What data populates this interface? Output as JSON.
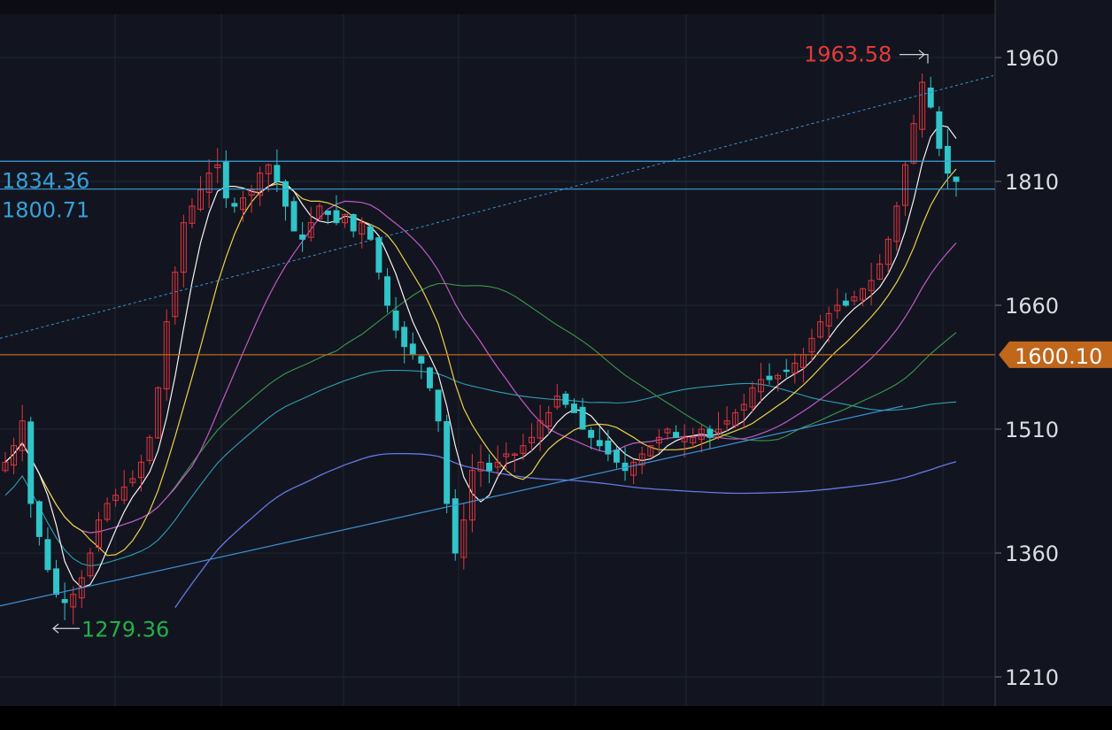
{
  "chart_data": {
    "type": "candlestick",
    "y_axis": {
      "ticks": [
        1960,
        1810,
        1660,
        1510,
        1360,
        1210
      ],
      "ylim": [
        1195,
        2015
      ],
      "grid": true,
      "position": "right"
    },
    "x_axis": {
      "labels": [],
      "grid": true
    },
    "current_price": {
      "value": 1600.1,
      "label": "1600.10",
      "color": "#c0671c"
    },
    "annotations": [
      {
        "name": "high",
        "value": 1963.58,
        "label": "1963.58",
        "color": "#e23b3b"
      },
      {
        "name": "low",
        "value": 1279.36,
        "label": "1279.36",
        "color": "#23b04a"
      },
      {
        "name": "resistance-1",
        "value": 1834.36,
        "label": "1834.36",
        "color": "#3aa0d8"
      },
      {
        "name": "resistance-2",
        "value": 1800.71,
        "label": "1800.71",
        "color": "#3aa0d8"
      }
    ],
    "colors": {
      "up": "#e0353f",
      "down": "#31c4c9",
      "ma5": "#f6f2f2",
      "ma10": "#ead14a",
      "ma20": "#c258c9",
      "ma60": "#3a9a4a",
      "ma120": "#2e9fb3",
      "ma250": "#6678e6",
      "trendline": "#3d8fd6",
      "grid": "#1d2530",
      "background": "#12151f"
    },
    "close_series": [
      1470,
      1490,
      1520,
      1420,
      1380,
      1340,
      1310,
      1300,
      1310,
      1330,
      1360,
      1400,
      1420,
      1430,
      1440,
      1450,
      1470,
      1500,
      1560,
      1640,
      1700,
      1760,
      1780,
      1800,
      1820,
      1830,
      1790,
      1780,
      1790,
      1800,
      1820,
      1830,
      1810,
      1780,
      1750,
      1740,
      1760,
      1780,
      1770,
      1760,
      1770,
      1750,
      1760,
      1740,
      1700,
      1660,
      1630,
      1610,
      1600,
      1590,
      1560,
      1520,
      1420,
      1360,
      1400,
      1460,
      1470,
      1460,
      1470,
      1480,
      1480,
      1490,
      1500,
      1520,
      1530,
      1550,
      1540,
      1530,
      1510,
      1500,
      1490,
      1480,
      1470,
      1460,
      1470,
      1480,
      1490,
      1500,
      1510,
      1500,
      1500,
      1500,
      1510,
      1500,
      1510,
      1520,
      1530,
      1540,
      1560,
      1570,
      1570,
      1575,
      1580,
      1590,
      1600,
      1620,
      1640,
      1650,
      1660,
      1660,
      1670,
      1680,
      1690,
      1710,
      1740,
      1780,
      1830,
      1880,
      1930,
      1900,
      1850,
      1820,
      1810
    ]
  }
}
